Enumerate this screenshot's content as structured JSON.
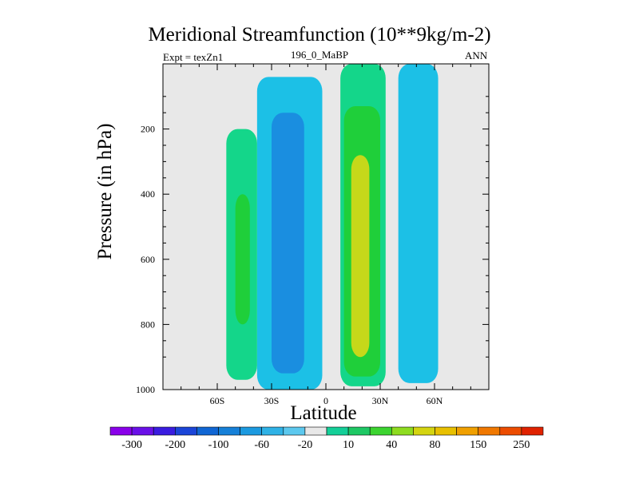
{
  "chart_data": {
    "type": "contour",
    "title": "Meridional Streamfunction (10**9kg/m-2)",
    "left_annotation": "Expt = texZn1",
    "center_annotation": "196_0_MaBP",
    "right_annotation": "ANN",
    "xlabel": "Latitude",
    "ylabel": "Pressure (in hPa)",
    "xlim": [
      -90,
      90
    ],
    "ylim": [
      1000,
      0
    ],
    "x_ticks": [
      {
        "value": -60,
        "label": "60S"
      },
      {
        "value": -30,
        "label": "30S"
      },
      {
        "value": 0,
        "label": "0"
      },
      {
        "value": 30,
        "label": "30N"
      },
      {
        "value": 60,
        "label": "60N"
      }
    ],
    "y_ticks": [
      {
        "value": 200,
        "label": "200"
      },
      {
        "value": 400,
        "label": "400"
      },
      {
        "value": 600,
        "label": "600"
      },
      {
        "value": 800,
        "label": "800"
      },
      {
        "value": 1000,
        "label": "1000"
      }
    ],
    "colorbar": {
      "levels": [
        "-300",
        "-200",
        "-100",
        "-60",
        "-20",
        "10",
        "40",
        "80",
        "150",
        "250"
      ],
      "colors": [
        "#8a00ea",
        "#6a10e8",
        "#3a1ce0",
        "#1b45d8",
        "#1066d4",
        "#1680d8",
        "#1c9ae0",
        "#2fb2e6",
        "#5cc8ee",
        "#e8e8e8",
        "#14cf98",
        "#1ec864",
        "#3cd430",
        "#8edc20",
        "#d4d410",
        "#e8c000",
        "#f0a000",
        "#f07800",
        "#ec4c00",
        "#e02200"
      ]
    },
    "regions": [
      {
        "name": "nh-hadley-cell",
        "level": "10 to 40",
        "color": "#14d68a",
        "lat": [
          8,
          33
        ],
        "p": [
          0,
          990
        ]
      },
      {
        "name": "nh-hadley-core",
        "level": "40 to 80",
        "color": "#1fcf3a",
        "lat": [
          10,
          30
        ],
        "p": [
          130,
          960
        ]
      },
      {
        "name": "nh-hadley-peak",
        "level": "80 to 150",
        "color": "#c6d81a",
        "lat": [
          14,
          24
        ],
        "p": [
          280,
          900
        ]
      },
      {
        "name": "sh-ferrel-cell",
        "level": "-20 to -10",
        "color": "#1cc0e6",
        "lat": [
          -38,
          -2
        ],
        "p": [
          40,
          1000
        ]
      },
      {
        "name": "sh-ferrel-core",
        "level": "-60 to -20",
        "color": "#1a8ee0",
        "lat": [
          -30,
          -12
        ],
        "p": [
          150,
          950
        ]
      },
      {
        "name": "nh-ferrel-cell",
        "level": "-20 to -10",
        "color": "#1cc0e6",
        "lat": [
          40,
          62
        ],
        "p": [
          0,
          980
        ]
      },
      {
        "name": "sh-polar-cell",
        "level": "10 to 40",
        "color": "#14d68a",
        "lat": [
          -55,
          -38
        ],
        "p": [
          200,
          970
        ]
      },
      {
        "name": "sh-polar-core",
        "level": "40 to 80",
        "color": "#1fcf3a",
        "lat": [
          -50,
          -42
        ],
        "p": [
          400,
          800
        ]
      }
    ]
  }
}
